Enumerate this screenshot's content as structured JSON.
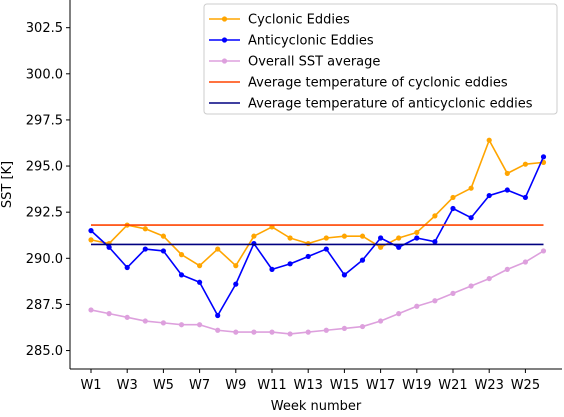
{
  "chart_data": {
    "type": "line",
    "title": "",
    "xlabel": "Week number",
    "ylabel": "SST [K]",
    "ylim": [
      284.0,
      304.0
    ],
    "yticks": [
      285.0,
      287.5,
      290.0,
      292.5,
      295.0,
      297.5,
      300.0,
      302.5
    ],
    "ytick_labels": [
      "285.0",
      "287.5",
      "290.0",
      "292.5",
      "295.0",
      "297.5",
      "300.0",
      "302.5"
    ],
    "categories": [
      "W1",
      "W2",
      "W3",
      "W4",
      "W5",
      "W6",
      "W7",
      "W8",
      "W9",
      "W10",
      "W11",
      "W12",
      "W13",
      "W14",
      "W15",
      "W16",
      "W17",
      "W18",
      "W19",
      "W20",
      "W21",
      "W22",
      "W23",
      "W24",
      "W25",
      "W26"
    ],
    "xtick_labels": [
      "W1",
      "W3",
      "W5",
      "W7",
      "W9",
      "W11",
      "W13",
      "W15",
      "W17",
      "W19",
      "W21",
      "W23",
      "W25"
    ],
    "grid": false,
    "legend_position": "top-right",
    "series": [
      {
        "name": "Cyclonic Eddies",
        "kind": "line-marker",
        "color": "#FFA500",
        "values": [
          291.0,
          290.8,
          291.8,
          291.6,
          291.2,
          290.2,
          289.6,
          290.5,
          289.6,
          291.2,
          291.7,
          291.1,
          290.8,
          291.1,
          291.2,
          291.2,
          290.6,
          291.1,
          291.4,
          292.3,
          293.3,
          293.8,
          296.4,
          294.6,
          295.1,
          295.2
        ]
      },
      {
        "name": "Anticyclonic Eddies",
        "kind": "line-marker",
        "color": "#0000FF",
        "values": [
          291.5,
          290.6,
          289.5,
          290.5,
          290.4,
          289.1,
          288.7,
          286.9,
          288.6,
          290.8,
          289.4,
          289.7,
          290.1,
          290.5,
          289.1,
          289.9,
          291.1,
          290.6,
          291.1,
          290.9,
          292.7,
          292.2,
          293.4,
          293.7,
          293.3,
          295.5
        ]
      },
      {
        "name": "Overall SST average",
        "kind": "line-marker",
        "color": "#DDA0DD",
        "values": [
          287.2,
          287.0,
          286.8,
          286.6,
          286.5,
          286.4,
          286.4,
          286.1,
          286.0,
          286.0,
          286.0,
          285.9,
          286.0,
          286.1,
          286.2,
          286.3,
          286.6,
          287.0,
          287.4,
          287.7,
          288.1,
          288.5,
          288.9,
          289.4,
          289.8,
          290.4
        ]
      },
      {
        "name": "Average temperature of cyclonic eddies",
        "kind": "hline",
        "color": "#FF4500",
        "value": 291.8
      },
      {
        "name": "Average temperature of anticyclonic eddies",
        "kind": "hline",
        "color": "#000080",
        "value": 290.75
      }
    ]
  }
}
